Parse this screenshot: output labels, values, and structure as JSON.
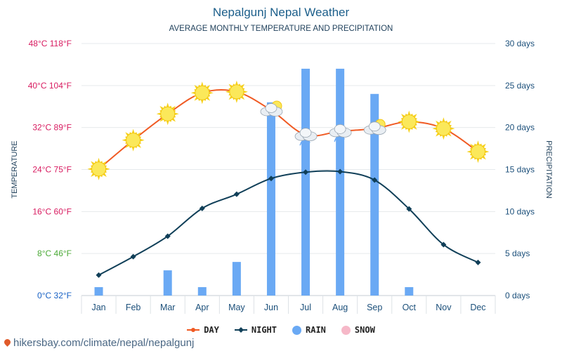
{
  "header": {
    "title": "Nepalgunj Nepal Weather",
    "subtitle": "AVERAGE MONTHLY TEMPERATURE AND PRECIPITATION"
  },
  "footer": {
    "url": "hikersbay.com/climate/nepal/nepalgunj"
  },
  "legend": [
    {
      "label": "DAY",
      "color": "#f05a23",
      "shape": "line-dot"
    },
    {
      "label": "NIGHT",
      "color": "#103f58",
      "shape": "line-diamond"
    },
    {
      "label": "RAIN",
      "color": "#6aa9f4",
      "shape": "dot"
    },
    {
      "label": "SNOW",
      "color": "#f6b8c8",
      "shape": "dot"
    }
  ],
  "chart_data": {
    "type": "line+bar",
    "categories": [
      "Jan",
      "Feb",
      "Mar",
      "Apr",
      "May",
      "Jun",
      "Jul",
      "Aug",
      "Sep",
      "Oct",
      "Nov",
      "Dec"
    ],
    "series": [
      {
        "name": "DAY",
        "axis": "left",
        "unit": "°C",
        "values": [
          24.1,
          29.6,
          34.6,
          38.6,
          38.8,
          35.3,
          30.6,
          31.3,
          31.8,
          33.1,
          31.8,
          27.4
        ]
      },
      {
        "name": "NIGHT",
        "axis": "left",
        "unit": "°C",
        "values": [
          3.9,
          7.4,
          11.3,
          16.6,
          19.3,
          22.3,
          23.5,
          23.6,
          22.0,
          16.5,
          9.7,
          6.3
        ]
      },
      {
        "name": "RAIN",
        "axis": "right",
        "unit": "days",
        "type": "bar",
        "values": [
          1,
          0,
          3,
          1,
          4,
          23,
          27,
          27,
          24,
          1,
          0,
          0
        ]
      }
    ],
    "weather_icons": [
      "sun",
      "sun",
      "sun",
      "sun",
      "sun",
      "partly-cloudy",
      "rain",
      "rain",
      "partly-cloudy",
      "sun",
      "sun",
      "sun"
    ],
    "left_axis": {
      "label": "TEMPERATURE",
      "range": [
        0,
        48
      ],
      "ticks": [
        {
          "value": 0,
          "label": "0°C 32°F",
          "color": "#1660c4"
        },
        {
          "value": 8,
          "label": "8°C 46°F",
          "color": "#4caa38"
        },
        {
          "value": 16,
          "label": "16°C 60°F",
          "color": "#d81b60"
        },
        {
          "value": 24,
          "label": "24°C 75°F",
          "color": "#d81b60"
        },
        {
          "value": 32,
          "label": "32°C 89°F",
          "color": "#d81b60"
        },
        {
          "value": 40,
          "label": "40°C 104°F",
          "color": "#d81b60"
        },
        {
          "value": 48,
          "label": "48°C 118°F",
          "color": "#d81b60"
        }
      ]
    },
    "right_axis": {
      "label": "PRECIPITATION",
      "range": [
        0,
        30
      ],
      "ticks": [
        {
          "value": 0,
          "label": "0 days"
        },
        {
          "value": 5,
          "label": "5 days"
        },
        {
          "value": 10,
          "label": "10 days"
        },
        {
          "value": 15,
          "label": "15 days"
        },
        {
          "value": 20,
          "label": "20 days"
        },
        {
          "value": 25,
          "label": "25 days"
        },
        {
          "value": 30,
          "label": "30 days"
        }
      ]
    }
  }
}
